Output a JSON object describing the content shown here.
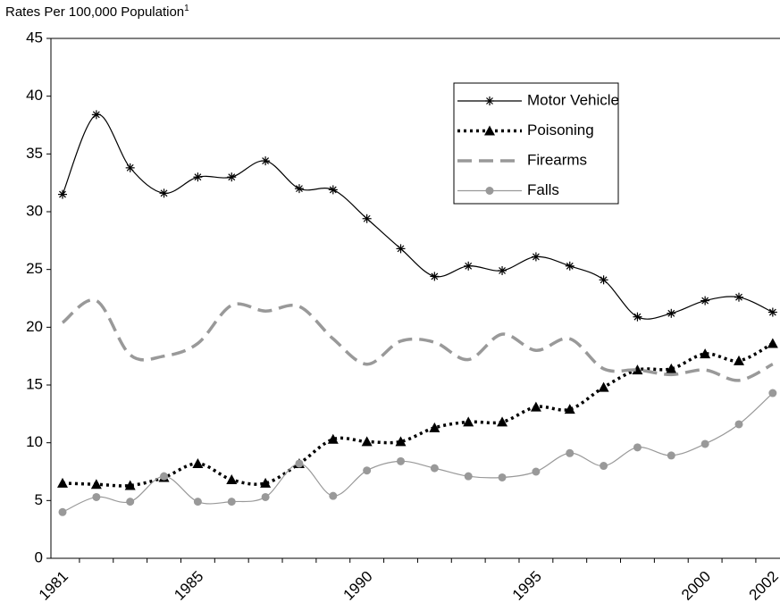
{
  "chart_data": {
    "type": "line",
    "ylabel": "Rates Per 100,000 Population",
    "ylabel_note": "1",
    "categories": [
      "1981",
      null,
      null,
      null,
      "1985",
      null,
      null,
      null,
      null,
      "1990",
      null,
      null,
      null,
      null,
      "1995",
      null,
      null,
      null,
      null,
      "2000",
      null,
      "2002"
    ],
    "ylim": [
      0,
      45
    ],
    "yticks": [
      0,
      5,
      10,
      15,
      20,
      25,
      30,
      35,
      40,
      45
    ],
    "grid": false,
    "series": [
      {
        "name": "Motor Vehicle",
        "color": "#000000",
        "style": "solid",
        "marker": "asterisk",
        "values": [
          31.5,
          38.4,
          33.8,
          31.6,
          33.0,
          33.0,
          34.4,
          32.0,
          31.9,
          29.4,
          26.8,
          24.4,
          25.3,
          24.9,
          26.1,
          25.3,
          24.1,
          20.9,
          21.2,
          22.3,
          22.6,
          21.3
        ]
      },
      {
        "name": "Poisoning",
        "color": "#000000",
        "style": "dotted",
        "marker": "triangle",
        "values": [
          6.5,
          6.4,
          6.3,
          7.0,
          8.2,
          6.8,
          6.5,
          8.2,
          10.3,
          10.1,
          10.1,
          11.3,
          11.8,
          11.8,
          13.1,
          12.9,
          14.8,
          16.3,
          16.4,
          17.7,
          17.1,
          18.6
        ]
      },
      {
        "name": "Firearms",
        "color": "#999999",
        "style": "dashed",
        "marker": "none",
        "values": [
          20.4,
          22.3,
          17.6,
          17.5,
          18.6,
          21.9,
          21.4,
          21.8,
          19.0,
          16.8,
          18.8,
          18.7,
          17.2,
          19.4,
          18.0,
          19.0,
          16.4,
          16.3,
          15.9,
          16.3,
          15.4,
          16.8
        ]
      },
      {
        "name": "Falls",
        "color": "#999999",
        "style": "solid",
        "marker": "circle",
        "values": [
          4.0,
          5.3,
          4.9,
          7.1,
          4.9,
          4.9,
          5.3,
          8.2,
          5.4,
          7.6,
          8.4,
          7.8,
          7.1,
          7.0,
          7.5,
          9.1,
          8.0,
          9.6,
          8.9,
          9.9,
          11.6,
          14.3
        ]
      }
    ],
    "legend": "upper-right"
  }
}
